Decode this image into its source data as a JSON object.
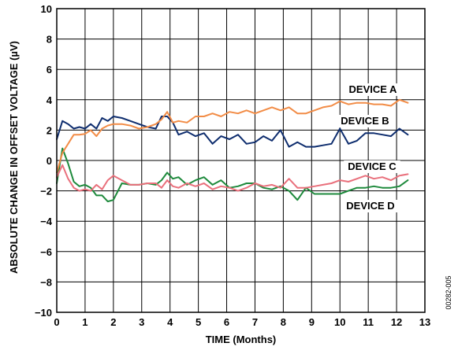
{
  "chart_data": {
    "type": "line",
    "title": "",
    "xlabel": "TIME (Months)",
    "ylabel": "ABSOLUTE CHANGE IN OFFSET VOLTAGE (µV)",
    "xlim": [
      0,
      13
    ],
    "ylim": [
      -10,
      10
    ],
    "x_ticks": [
      0,
      1,
      2,
      3,
      4,
      5,
      6,
      7,
      8,
      9,
      10,
      11,
      12,
      13
    ],
    "y_ticks": [
      10,
      8,
      6,
      4,
      2,
      0,
      -2,
      -4,
      -6,
      -8,
      -10
    ],
    "y_tick_labels": [
      "10",
      "8",
      "6",
      "4",
      "2",
      "0",
      "−2",
      "−4",
      "−6",
      "−8",
      "−10"
    ],
    "grid": true,
    "figure_id": "00282-005",
    "series": [
      {
        "name": "DEVICE A",
        "color": "#f28c46",
        "x": [
          0,
          0.2,
          0.4,
          0.6,
          0.8,
          1.0,
          1.2,
          1.4,
          1.6,
          1.8,
          2.0,
          2.3,
          2.6,
          2.9,
          3.2,
          3.5,
          3.7,
          3.9,
          4.1,
          4.3,
          4.6,
          4.9,
          5.2,
          5.5,
          5.8,
          6.1,
          6.4,
          6.7,
          7.0,
          7.3,
          7.6,
          7.9,
          8.2,
          8.5,
          8.8,
          9.1,
          9.4,
          9.7,
          10.0,
          10.3,
          10.6,
          10.9,
          11.2,
          11.5,
          11.8,
          12.1,
          12.4
        ],
        "y": [
          -0.8,
          0.5,
          1.1,
          1.7,
          1.7,
          1.75,
          2.0,
          1.6,
          2.1,
          2.3,
          2.4,
          2.4,
          2.3,
          2.1,
          2.2,
          2.4,
          2.7,
          3.2,
          2.5,
          2.6,
          2.5,
          2.9,
          2.9,
          3.1,
          2.9,
          3.2,
          3.1,
          3.3,
          3.1,
          3.3,
          3.5,
          3.3,
          3.5,
          3.1,
          3.1,
          3.3,
          3.5,
          3.6,
          3.9,
          3.7,
          3.8,
          3.8,
          3.7,
          3.7,
          3.6,
          4.0,
          3.8
        ]
      },
      {
        "name": "DEVICE B",
        "color": "#0e2d6e",
        "x": [
          0,
          0.2,
          0.4,
          0.6,
          0.8,
          1.0,
          1.2,
          1.4,
          1.6,
          1.8,
          2.0,
          2.3,
          2.6,
          2.9,
          3.2,
          3.5,
          3.7,
          3.9,
          4.1,
          4.3,
          4.6,
          4.9,
          5.2,
          5.5,
          5.8,
          6.1,
          6.4,
          6.7,
          7.0,
          7.3,
          7.6,
          7.9,
          8.2,
          8.5,
          8.8,
          9.1,
          9.4,
          9.7,
          10.0,
          10.3,
          10.6,
          10.9,
          11.2,
          11.5,
          11.8,
          12.1,
          12.4
        ],
        "y": [
          1.4,
          2.6,
          2.4,
          2.1,
          2.2,
          2.1,
          2.4,
          2.1,
          2.8,
          2.6,
          2.9,
          2.8,
          2.6,
          2.4,
          2.2,
          2.1,
          2.9,
          2.9,
          2.5,
          1.7,
          1.9,
          1.6,
          1.8,
          1.1,
          1.6,
          1.4,
          1.7,
          1.1,
          1.2,
          1.6,
          1.3,
          2.0,
          0.9,
          1.2,
          0.9,
          0.9,
          1.0,
          1.1,
          2.1,
          1.1,
          1.3,
          1.8,
          1.8,
          1.7,
          1.6,
          2.1,
          1.7
        ]
      },
      {
        "name": "DEVICE C",
        "color": "#e9707c",
        "x": [
          0,
          0.2,
          0.4,
          0.6,
          0.8,
          1.0,
          1.2,
          1.4,
          1.6,
          1.8,
          2.0,
          2.3,
          2.6,
          2.9,
          3.2,
          3.5,
          3.7,
          3.9,
          4.1,
          4.3,
          4.6,
          4.9,
          5.2,
          5.5,
          5.8,
          6.1,
          6.4,
          6.7,
          7.0,
          7.3,
          7.6,
          7.9,
          8.2,
          8.5,
          8.8,
          9.1,
          9.4,
          9.7,
          10.0,
          10.3,
          10.6,
          10.9,
          11.2,
          11.5,
          11.8,
          12.1,
          12.4
        ],
        "y": [
          -1.1,
          -0.3,
          -1.2,
          -1.8,
          -2.0,
          -1.9,
          -2.0,
          -1.6,
          -1.9,
          -1.3,
          -1.0,
          -1.3,
          -1.6,
          -1.6,
          -1.5,
          -1.5,
          -1.8,
          -1.3,
          -1.7,
          -1.8,
          -1.5,
          -1.7,
          -1.5,
          -1.9,
          -1.7,
          -1.8,
          -2.0,
          -1.8,
          -1.5,
          -1.7,
          -1.6,
          -1.8,
          -1.2,
          -1.8,
          -1.8,
          -1.7,
          -1.6,
          -1.5,
          -1.3,
          -1.4,
          -1.2,
          -1.0,
          -1.2,
          -1.1,
          -1.3,
          -1.0,
          -0.9
        ]
      },
      {
        "name": "DEVICE D",
        "color": "#1e8a3c",
        "x": [
          0,
          0.2,
          0.4,
          0.6,
          0.8,
          1.0,
          1.2,
          1.4,
          1.6,
          1.8,
          2.0,
          2.3,
          2.6,
          2.9,
          3.2,
          3.5,
          3.7,
          3.9,
          4.1,
          4.3,
          4.6,
          4.9,
          5.2,
          5.5,
          5.8,
          6.1,
          6.4,
          6.7,
          7.0,
          7.3,
          7.6,
          7.9,
          8.2,
          8.5,
          8.8,
          9.1,
          9.4,
          9.7,
          10.0,
          10.3,
          10.6,
          10.9,
          11.2,
          11.5,
          11.8,
          12.1,
          12.4
        ],
        "y": [
          -1.5,
          0.8,
          -0.2,
          -1.4,
          -1.7,
          -1.6,
          -1.8,
          -2.3,
          -2.3,
          -2.7,
          -2.6,
          -1.5,
          -1.6,
          -1.6,
          -1.5,
          -1.6,
          -1.3,
          -0.8,
          -1.2,
          -1.1,
          -1.6,
          -1.3,
          -1.1,
          -1.6,
          -1.3,
          -1.8,
          -1.7,
          -1.5,
          -1.5,
          -1.8,
          -1.9,
          -1.7,
          -2.0,
          -2.6,
          -1.8,
          -2.2,
          -2.2,
          -2.2,
          -2.2,
          -2.0,
          -1.8,
          -1.8,
          -1.7,
          -1.8,
          -1.8,
          -1.7,
          -1.3
        ]
      }
    ]
  }
}
